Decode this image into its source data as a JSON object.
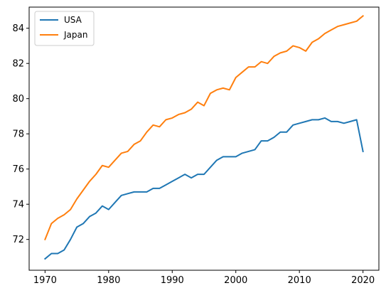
{
  "chart_data": {
    "type": "line",
    "title": "",
    "xlabel": "",
    "ylabel": "",
    "xlim": [
      1967.5,
      2022.5
    ],
    "ylim": [
      70.25,
      85.2
    ],
    "xticks": [
      1970,
      1980,
      1990,
      2000,
      2010,
      2020
    ],
    "yticks": [
      72,
      74,
      76,
      78,
      80,
      82,
      84
    ],
    "grid": false,
    "legend_position": "top-left",
    "x": [
      1970,
      1971,
      1972,
      1973,
      1974,
      1975,
      1976,
      1977,
      1978,
      1979,
      1980,
      1981,
      1982,
      1983,
      1984,
      1985,
      1986,
      1987,
      1988,
      1989,
      1990,
      1991,
      1992,
      1993,
      1994,
      1995,
      1996,
      1997,
      1998,
      1999,
      2000,
      2001,
      2002,
      2003,
      2004,
      2005,
      2006,
      2007,
      2008,
      2009,
      2010,
      2011,
      2012,
      2013,
      2014,
      2015,
      2016,
      2017,
      2018,
      2019,
      2020
    ],
    "series": [
      {
        "name": "USA",
        "color": "#1f77b4",
        "values": [
          70.9,
          71.2,
          71.2,
          71.4,
          72.0,
          72.7,
          72.9,
          73.3,
          73.5,
          73.9,
          73.7,
          74.1,
          74.5,
          74.6,
          74.7,
          74.7,
          74.7,
          74.9,
          74.9,
          75.1,
          75.3,
          75.5,
          75.7,
          75.5,
          75.7,
          75.7,
          76.1,
          76.5,
          76.7,
          76.7,
          76.7,
          76.9,
          77.0,
          77.1,
          77.6,
          77.6,
          77.8,
          78.1,
          78.1,
          78.5,
          78.6,
          78.7,
          78.8,
          78.8,
          78.9,
          78.7,
          78.7,
          78.6,
          78.7,
          78.8,
          77.0
        ]
      },
      {
        "name": "Japan",
        "color": "#ff7f0e",
        "values": [
          72.0,
          72.9,
          73.2,
          73.4,
          73.7,
          74.3,
          74.8,
          75.3,
          75.7,
          76.2,
          76.1,
          76.5,
          76.9,
          77.0,
          77.4,
          77.6,
          78.1,
          78.5,
          78.4,
          78.8,
          78.9,
          79.1,
          79.2,
          79.4,
          79.8,
          79.6,
          80.3,
          80.5,
          80.6,
          80.5,
          81.2,
          81.5,
          81.8,
          81.8,
          82.1,
          82.0,
          82.4,
          82.6,
          82.7,
          83.0,
          82.9,
          82.7,
          83.2,
          83.4,
          83.7,
          83.9,
          84.1,
          84.2,
          84.3,
          84.4,
          84.7
        ]
      }
    ]
  }
}
